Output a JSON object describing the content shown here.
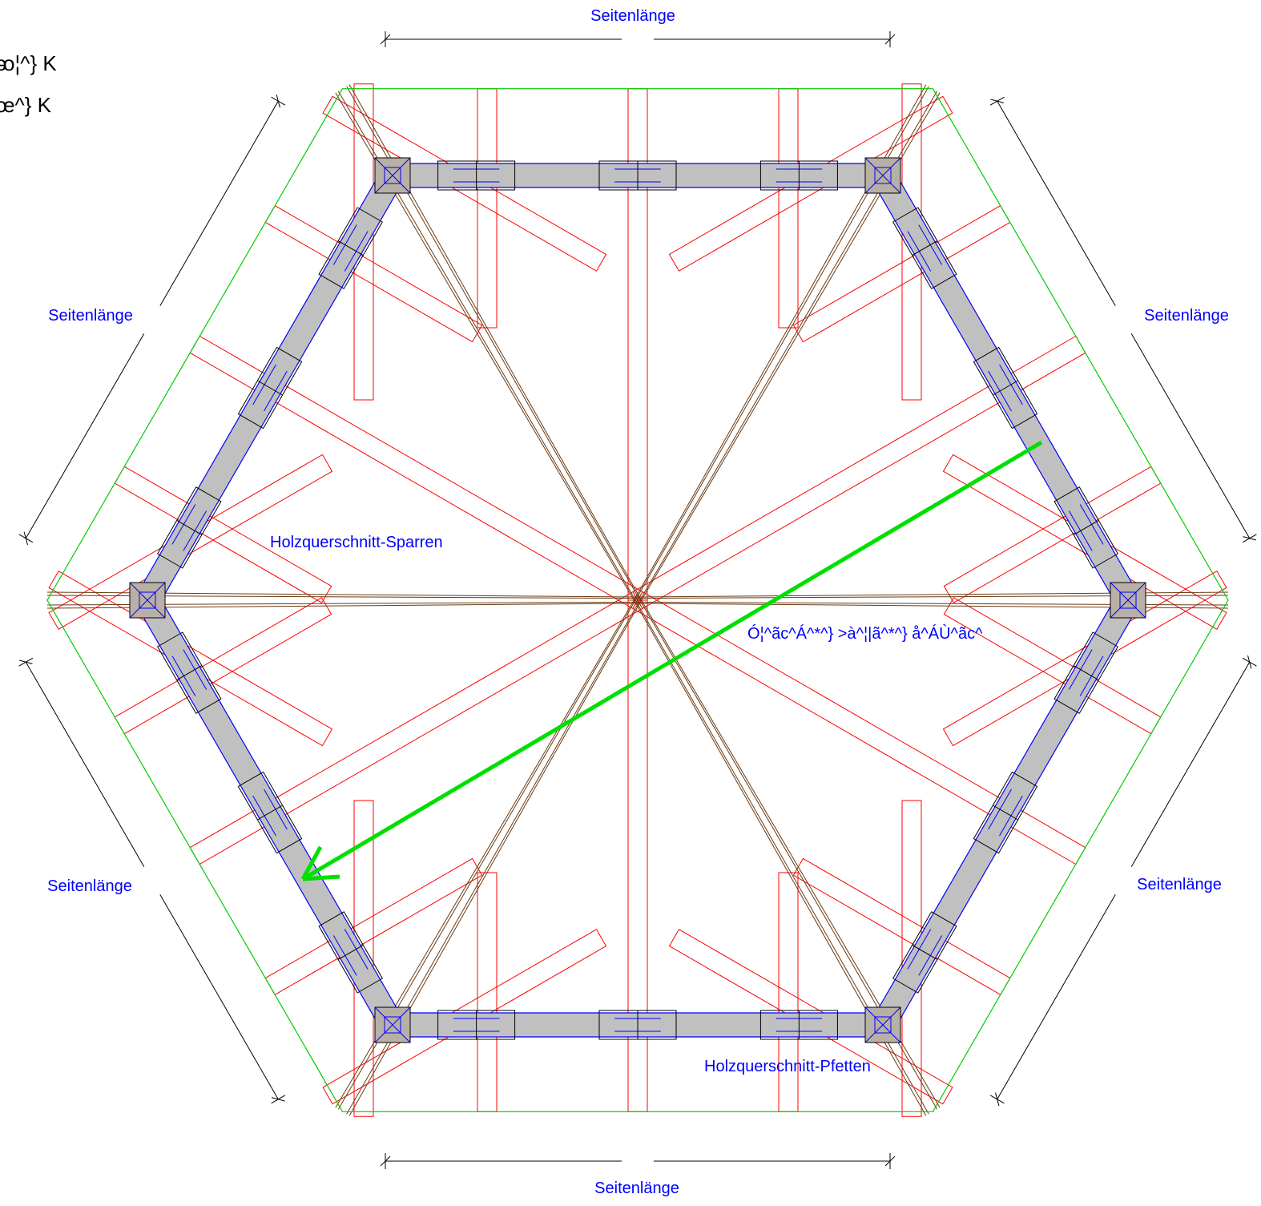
{
  "top_left_text": {
    "line1": "ᴔ¦^} K",
    "line2": "œ^} K"
  },
  "dimension_label": "Seitenlänge",
  "labels": {
    "rafter_section": "Holzquerschnitt-Sparren",
    "purlin_section": "Holzquerschnitt-Pfetten",
    "garbled": "Ó¦^ãc^Á^*^} >à^¦|ã^*^} å^ÁÙ^ãc^"
  },
  "colors": {
    "outline": "#00cc00",
    "rafter": "#ff0000",
    "hip": "#6b3a12",
    "purlin_edge": "#0000ff",
    "purlin_fill": "#c0c0c0",
    "dimension": "#000000",
    "label": "#0000ff",
    "arrow": "#00e000"
  },
  "arrow": {
    "from": "right-edge",
    "to": "lower-left-edge"
  }
}
